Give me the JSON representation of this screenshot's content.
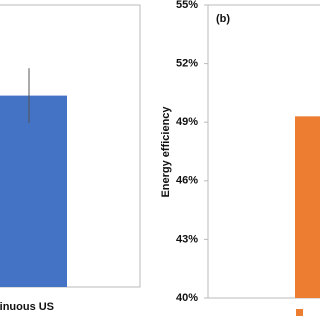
{
  "chart_data": [
    {
      "type": "bar",
      "categories": [
        "tinuous US"
      ],
      "values": [
        49.8
      ],
      "errors": [
        1.4
      ],
      "color": "#4472c4",
      "ylim": [
        40,
        55
      ]
    },
    {
      "type": "bar",
      "title": "(b)",
      "y_label": "Energy efficiency",
      "categories": [
        null
      ],
      "values": [
        49.3
      ],
      "color": "#ed7d31",
      "ylim": [
        40,
        55
      ],
      "yticks": [
        {
          "value": 40,
          "label": "40%"
        },
        {
          "value": 43,
          "label": "43%"
        },
        {
          "value": 46,
          "label": "46%"
        },
        {
          "value": 49,
          "label": "49%"
        },
        {
          "value": 52,
          "label": "52%"
        },
        {
          "value": 55,
          "label": "55%"
        }
      ]
    }
  ]
}
